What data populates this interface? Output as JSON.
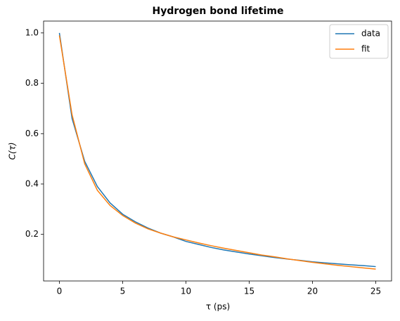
{
  "chart_data": {
    "type": "line",
    "title": "Hydrogen bond lifetime",
    "x_label": "τ (ps)",
    "y_label": "C(τ)",
    "x": [
      0,
      1,
      2,
      3,
      4,
      5,
      6,
      7,
      8,
      9,
      10,
      11,
      12,
      13,
      14,
      15,
      16,
      17,
      18,
      19,
      20,
      21,
      22,
      23,
      24,
      25
    ],
    "series": [
      {
        "name": "data",
        "color": "#1f77b4",
        "values": [
          1.0,
          0.66,
          0.49,
          0.39,
          0.325,
          0.28,
          0.25,
          0.225,
          0.205,
          0.19,
          0.172,
          0.16,
          0.148,
          0.138,
          0.13,
          0.122,
          0.115,
          0.108,
          0.102,
          0.097,
          0.091,
          0.087,
          0.083,
          0.079,
          0.076,
          0.072
        ]
      },
      {
        "name": "fit",
        "color": "#ff7f0e",
        "values": [
          0.99,
          0.675,
          0.48,
          0.375,
          0.315,
          0.275,
          0.245,
          0.222,
          0.205,
          0.19,
          0.178,
          0.166,
          0.155,
          0.145,
          0.136,
          0.127,
          0.118,
          0.111,
          0.103,
          0.096,
          0.089,
          0.083,
          0.077,
          0.072,
          0.067,
          0.062
        ]
      }
    ],
    "xlim": [
      -1.25,
      26.25
    ],
    "ylim": [
      0.015,
      1.047
    ],
    "xticks": [
      0,
      5,
      10,
      15,
      20,
      25
    ],
    "yticks": [
      0.2,
      0.4,
      0.6,
      0.8,
      {
        "value": 1,
        "label": "1.0"
      }
    ],
    "legend": "upper right"
  }
}
